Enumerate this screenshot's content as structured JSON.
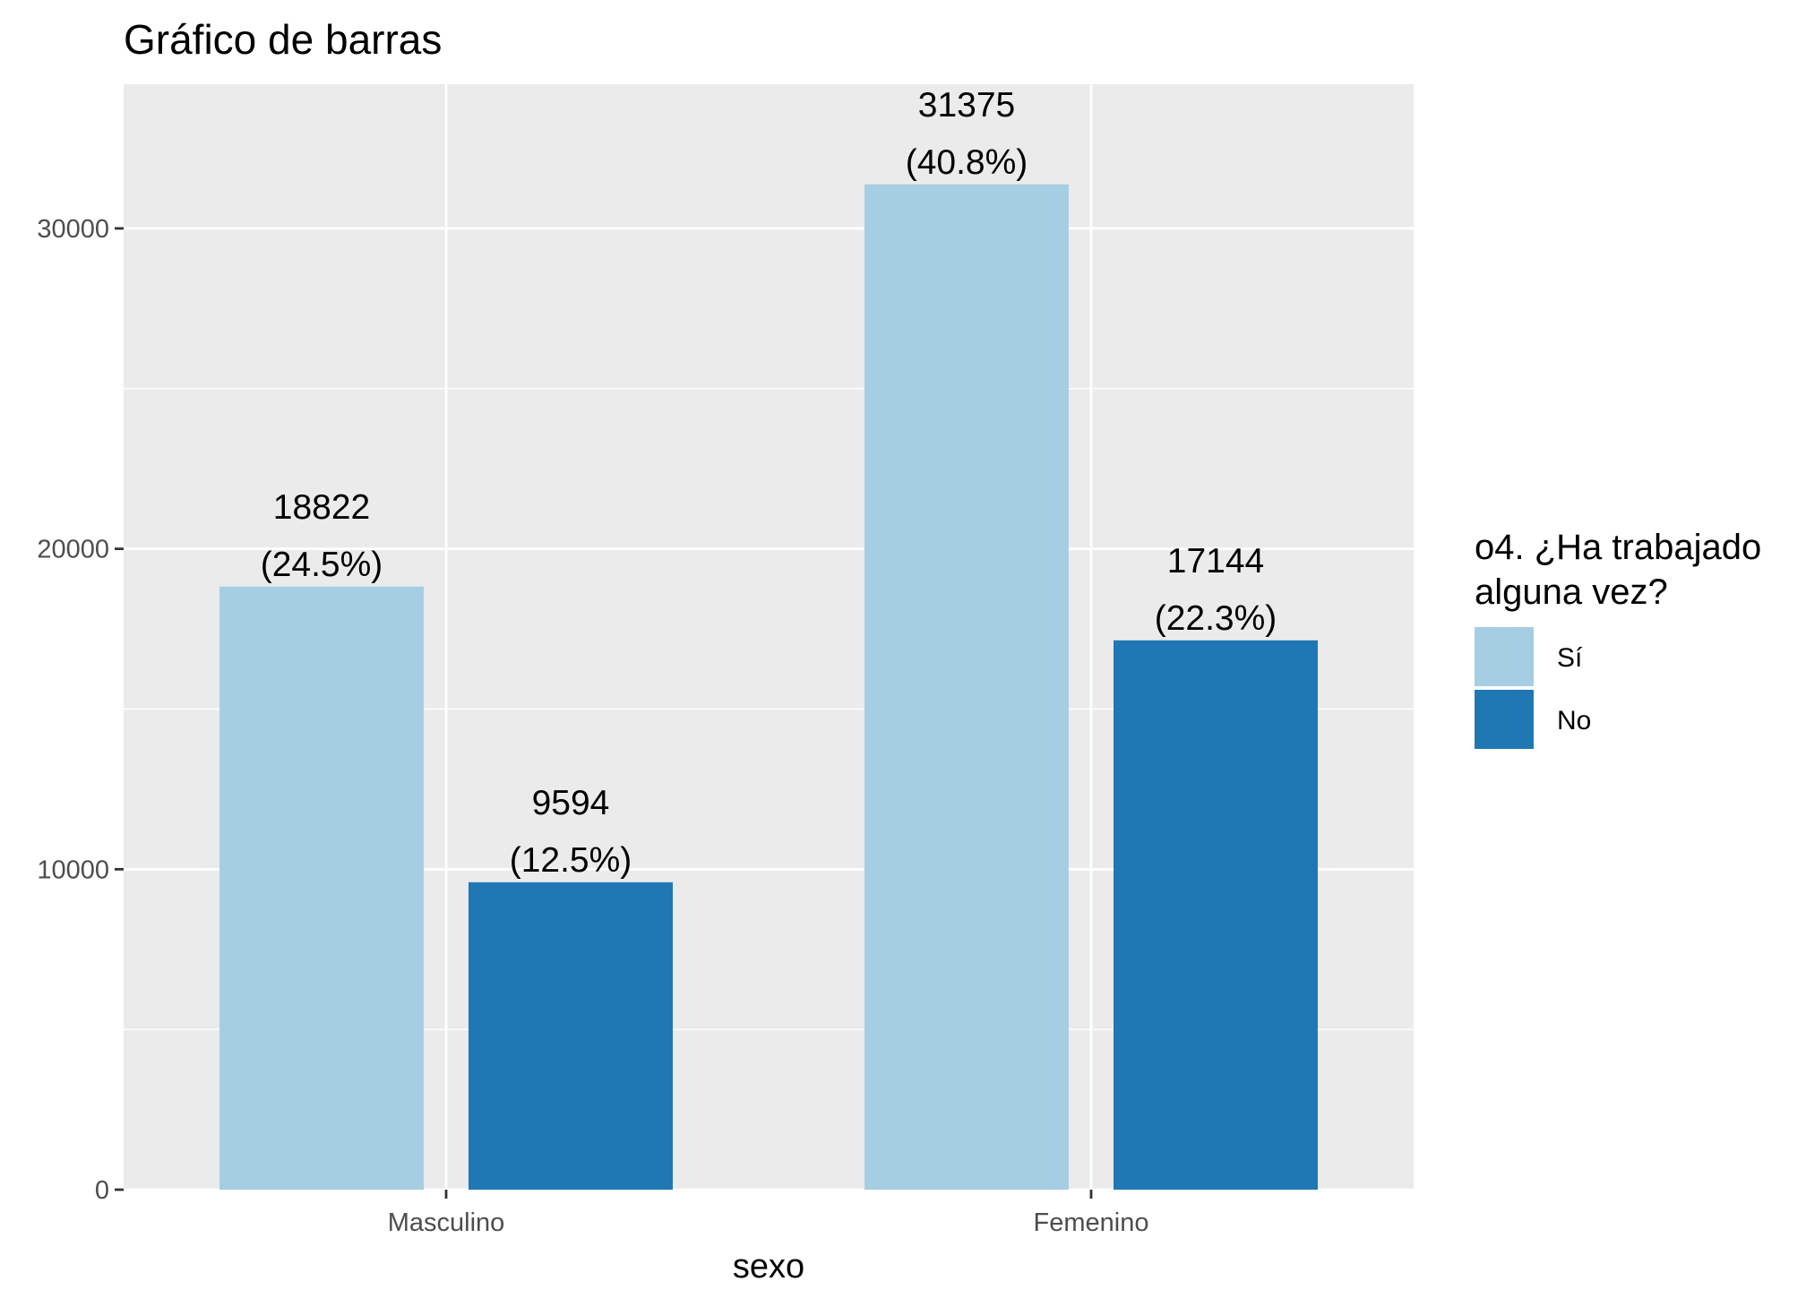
{
  "chart_data": {
    "type": "bar",
    "title": "Gráfico de barras",
    "xlabel": "sexo",
    "ylabel": "",
    "categories": [
      "Masculino",
      "Femenino"
    ],
    "series": [
      {
        "name": "Sí",
        "color": "#a6cee3",
        "values": [
          18822,
          31375
        ],
        "percent_labels": [
          "(24.5%)",
          "(40.8%)"
        ]
      },
      {
        "name": "No",
        "color": "#1f78b4",
        "values": [
          9594,
          17144
        ],
        "percent_labels": [
          "(12.5%)",
          "(22.3%)"
        ]
      }
    ],
    "ylim": [
      0,
      34500
    ],
    "y_ticks": [
      0,
      10000,
      20000,
      30000
    ],
    "y_tick_labels": [
      "0",
      "10000",
      "20000",
      "30000"
    ],
    "y_minor_ticks": [
      5000,
      15000,
      25000
    ],
    "grid": true,
    "panel_background": "#ebebeb",
    "legend": {
      "title_lines": [
        "o4. ¿Ha trabajado",
        "alguna vez?"
      ],
      "placement": "right"
    }
  }
}
